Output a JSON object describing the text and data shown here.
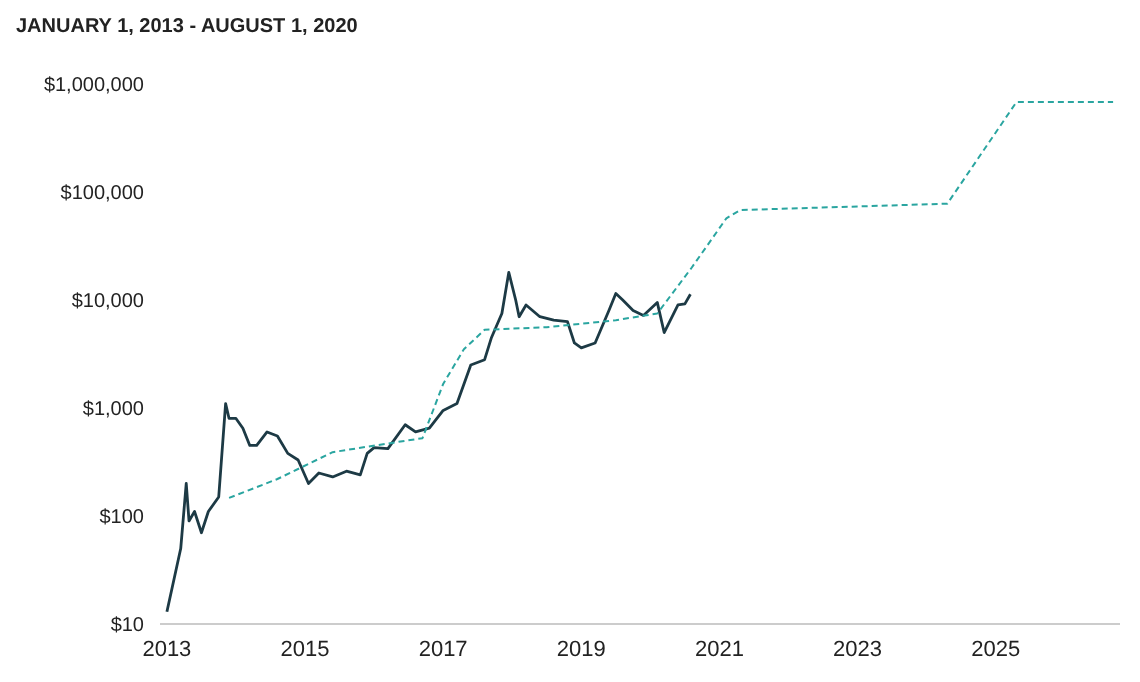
{
  "chart_data": {
    "type": "line",
    "title": "JANUARY 1, 2013 - AUGUST 1, 2020",
    "log": "y",
    "marker": "none",
    "xlim": [
      2012.9,
      2026.8
    ],
    "xticks": [
      2013,
      2015,
      2017,
      2019,
      2021,
      2023,
      2025
    ],
    "ylim": [
      10,
      1000000
    ],
    "yticks": [
      {
        "value": 10,
        "label": "$10"
      },
      {
        "value": 100,
        "label": "$100"
      },
      {
        "value": 1000,
        "label": "$1,000"
      },
      {
        "value": 10000,
        "label": "$10,000"
      },
      {
        "value": 100000,
        "label": "$100,000"
      },
      {
        "value": 1000000,
        "label": "$1,000,000"
      }
    ],
    "series": [
      {
        "color": "#1d3a45",
        "line_style": "solid",
        "x": [
          2013.0,
          2013.2,
          2013.28,
          2013.32,
          2013.4,
          2013.5,
          2013.6,
          2013.75,
          2013.85,
          2013.9,
          2014.0,
          2014.1,
          2014.2,
          2014.3,
          2014.45,
          2014.6,
          2014.75,
          2014.9,
          2015.05,
          2015.2,
          2015.4,
          2015.6,
          2015.8,
          2015.9,
          2016.0,
          2016.2,
          2016.45,
          2016.6,
          2016.8,
          2017.0,
          2017.2,
          2017.4,
          2017.6,
          2017.7,
          2017.85,
          2017.95,
          2018.05,
          2018.1,
          2018.2,
          2018.4,
          2018.6,
          2018.8,
          2018.9,
          2019.0,
          2019.2,
          2019.4,
          2019.5,
          2019.6,
          2019.75,
          2019.9,
          2020.1,
          2020.2,
          2020.4,
          2020.5,
          2020.58
        ],
        "values": [
          13,
          50,
          200,
          90,
          110,
          70,
          110,
          150,
          1100,
          800,
          800,
          650,
          450,
          450,
          600,
          550,
          380,
          330,
          200,
          250,
          230,
          260,
          240,
          380,
          430,
          420,
          700,
          600,
          650,
          950,
          1100,
          2500,
          2800,
          4500,
          7500,
          18000,
          10000,
          7000,
          9000,
          7000,
          6500,
          6300,
          4000,
          3600,
          4000,
          8000,
          11500,
          10000,
          8000,
          7200,
          9500,
          5000,
          9000,
          9200,
          11300
        ]
      },
      {
        "color": "#2aa5a0",
        "line_style": "dashed",
        "x": [
          2013.9,
          2014.6,
          2015.4,
          2016.3,
          2016.7,
          2017.0,
          2017.3,
          2017.6,
          2018.5,
          2019.5,
          2020.1,
          2020.6,
          2021.1,
          2021.3,
          2024.3,
          2025.3,
          2026.7
        ],
        "values": [
          147,
          220,
          390,
          480,
          525,
          1670,
          3500,
          5300,
          5600,
          6500,
          7500,
          20000,
          57000,
          68000,
          78000,
          680000,
          680000
        ]
      }
    ]
  }
}
